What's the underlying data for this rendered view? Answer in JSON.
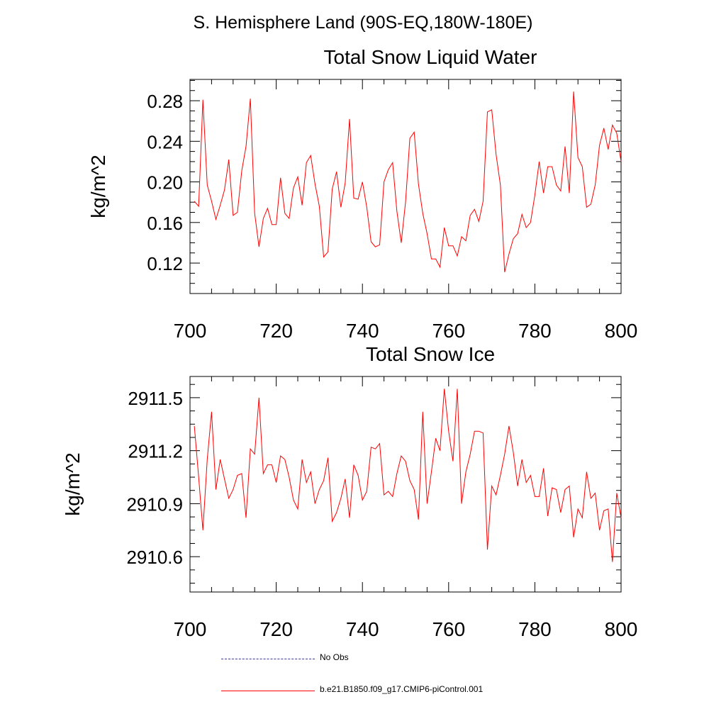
{
  "figure": {
    "title": "S. Hemisphere Land (90S-EQ,180W-180E)"
  },
  "colors": {
    "model_line": "#ff0000",
    "obs_line": "#3a3a9c",
    "axis": "#000000",
    "background": "#ffffff"
  },
  "legend": {
    "items": [
      {
        "label": "No Obs",
        "style": "dashed",
        "color": "#3a3a9c"
      },
      {
        "label": "b.e21.B1850.f09_g17.CMIP6-piControl.001",
        "style": "solid",
        "color": "#ff0000"
      }
    ]
  },
  "chart_data": [
    {
      "type": "line",
      "title": "Total Snow Liquid Water",
      "xlabel": "",
      "ylabel": "kg/m^2",
      "xlim": [
        700,
        800
      ],
      "ylim": [
        0.09,
        0.301
      ],
      "xticks": [
        700,
        720,
        740,
        760,
        780,
        800
      ],
      "xtick_labels": [
        "700",
        "720",
        "740",
        "760",
        "780",
        "800"
      ],
      "yticks": [
        0.12,
        0.16,
        0.2,
        0.24,
        0.28
      ],
      "ytick_labels": [
        "0.12",
        "0.16",
        "0.20",
        "0.24",
        "0.28"
      ],
      "series": [
        {
          "name": "b.e21.B1850.f09_g17.CMIP6-piControl.001",
          "color": "#ff0000",
          "x": [
            701,
            702,
            703,
            704,
            705,
            706,
            707,
            708,
            709,
            710,
            711,
            712,
            713,
            714,
            715,
            716,
            717,
            718,
            719,
            720,
            721,
            722,
            723,
            724,
            725,
            726,
            727,
            728,
            729,
            730,
            731,
            732,
            733,
            734,
            735,
            736,
            737,
            738,
            739,
            740,
            741,
            742,
            743,
            744,
            745,
            746,
            747,
            748,
            749,
            750,
            751,
            752,
            753,
            754,
            755,
            756,
            757,
            758,
            759,
            760,
            761,
            762,
            763,
            764,
            765,
            766,
            767,
            768,
            769,
            770,
            771,
            772,
            773,
            774,
            775,
            776,
            777,
            778,
            779,
            780,
            781,
            782,
            783,
            784,
            785,
            786,
            787,
            788,
            789,
            790,
            791,
            792,
            793,
            794,
            795,
            796,
            797,
            798,
            799,
            800
          ],
          "values": [
            0.181,
            0.176,
            0.281,
            0.197,
            0.181,
            0.163,
            0.177,
            0.192,
            0.222,
            0.167,
            0.17,
            0.211,
            0.235,
            0.282,
            0.169,
            0.136,
            0.164,
            0.174,
            0.158,
            0.158,
            0.204,
            0.169,
            0.164,
            0.194,
            0.205,
            0.177,
            0.219,
            0.226,
            0.198,
            0.176,
            0.126,
            0.131,
            0.193,
            0.21,
            0.175,
            0.199,
            0.262,
            0.184,
            0.183,
            0.2,
            0.175,
            0.141,
            0.136,
            0.138,
            0.2,
            0.212,
            0.219,
            0.171,
            0.14,
            0.18,
            0.243,
            0.249,
            0.198,
            0.169,
            0.149,
            0.124,
            0.124,
            0.116,
            0.155,
            0.137,
            0.137,
            0.127,
            0.146,
            0.142,
            0.167,
            0.173,
            0.161,
            0.181,
            0.269,
            0.271,
            0.227,
            0.197,
            0.111,
            0.129,
            0.144,
            0.149,
            0.168,
            0.155,
            0.16,
            0.187,
            0.22,
            0.189,
            0.215,
            0.215,
            0.197,
            0.191,
            0.235,
            0.189,
            0.289,
            0.224,
            0.215,
            0.175,
            0.178,
            0.197,
            0.236,
            0.253,
            0.232,
            0.256,
            0.248,
            0.22
          ]
        }
      ]
    },
    {
      "type": "line",
      "title": "Total Snow Ice",
      "xlabel": "",
      "ylabel": "kg/m^2",
      "xlim": [
        700,
        800
      ],
      "ylim": [
        2910.4,
        2911.62
      ],
      "xticks": [
        700,
        720,
        740,
        760,
        780,
        800
      ],
      "xtick_labels": [
        "700",
        "720",
        "740",
        "760",
        "780",
        "800"
      ],
      "yticks": [
        2910.6,
        2910.9,
        2911.2,
        2911.5
      ],
      "ytick_labels": [
        "2910.6",
        "2910.9",
        "2911.2",
        "2911.5"
      ],
      "series": [
        {
          "name": "b.e21.B1850.f09_g17.CMIP6-piControl.001",
          "color": "#ff0000",
          "x": [
            701,
            702,
            703,
            704,
            705,
            706,
            707,
            708,
            709,
            710,
            711,
            712,
            713,
            714,
            715,
            716,
            717,
            718,
            719,
            720,
            721,
            722,
            723,
            724,
            725,
            726,
            727,
            728,
            729,
            730,
            731,
            732,
            733,
            734,
            735,
            736,
            737,
            738,
            739,
            740,
            741,
            742,
            743,
            744,
            745,
            746,
            747,
            748,
            749,
            750,
            751,
            752,
            753,
            754,
            755,
            756,
            757,
            758,
            759,
            760,
            761,
            762,
            763,
            764,
            765,
            766,
            767,
            768,
            769,
            770,
            771,
            772,
            773,
            774,
            775,
            776,
            777,
            778,
            779,
            780,
            781,
            782,
            783,
            784,
            785,
            786,
            787,
            788,
            789,
            790,
            791,
            792,
            793,
            794,
            795,
            796,
            797,
            798,
            799,
            800
          ],
          "values": [
            2911.34,
            2911.05,
            2910.75,
            2911.15,
            2911.42,
            2910.98,
            2911.15,
            2911.04,
            2910.93,
            2910.98,
            2911.06,
            2911.07,
            2910.82,
            2911.21,
            2911.18,
            2911.5,
            2911.07,
            2911.12,
            2911.12,
            2911.02,
            2911.17,
            2911.15,
            2911.05,
            2910.92,
            2910.87,
            2911.15,
            2911.02,
            2911.08,
            2910.9,
            2910.98,
            2911.03,
            2911.16,
            2910.8,
            2910.85,
            2910.93,
            2911.04,
            2910.82,
            2911.12,
            2911.06,
            2910.92,
            2910.97,
            2911.22,
            2911.21,
            2911.24,
            2910.95,
            2910.97,
            2910.94,
            2911.07,
            2911.17,
            2911.14,
            2911.03,
            2910.98,
            2910.81,
            2911.42,
            2910.9,
            2911.08,
            2911.27,
            2911.2,
            2911.55,
            2911.31,
            2911.14,
            2911.55,
            2910.9,
            2911.08,
            2911.18,
            2911.31,
            2911.31,
            2911.3,
            2910.64,
            2911.0,
            2910.95,
            2911.06,
            2911.18,
            2911.34,
            2911.19,
            2911.0,
            2911.15,
            2911.02,
            2911.06,
            2910.94,
            2910.94,
            2911.1,
            2910.83,
            2910.99,
            2910.98,
            2910.85,
            2910.98,
            2911.0,
            2910.71,
            2910.87,
            2910.82,
            2911.08,
            2910.93,
            2910.96,
            2910.75,
            2910.86,
            2910.87,
            2910.57,
            2910.96,
            2910.82
          ]
        }
      ]
    }
  ]
}
